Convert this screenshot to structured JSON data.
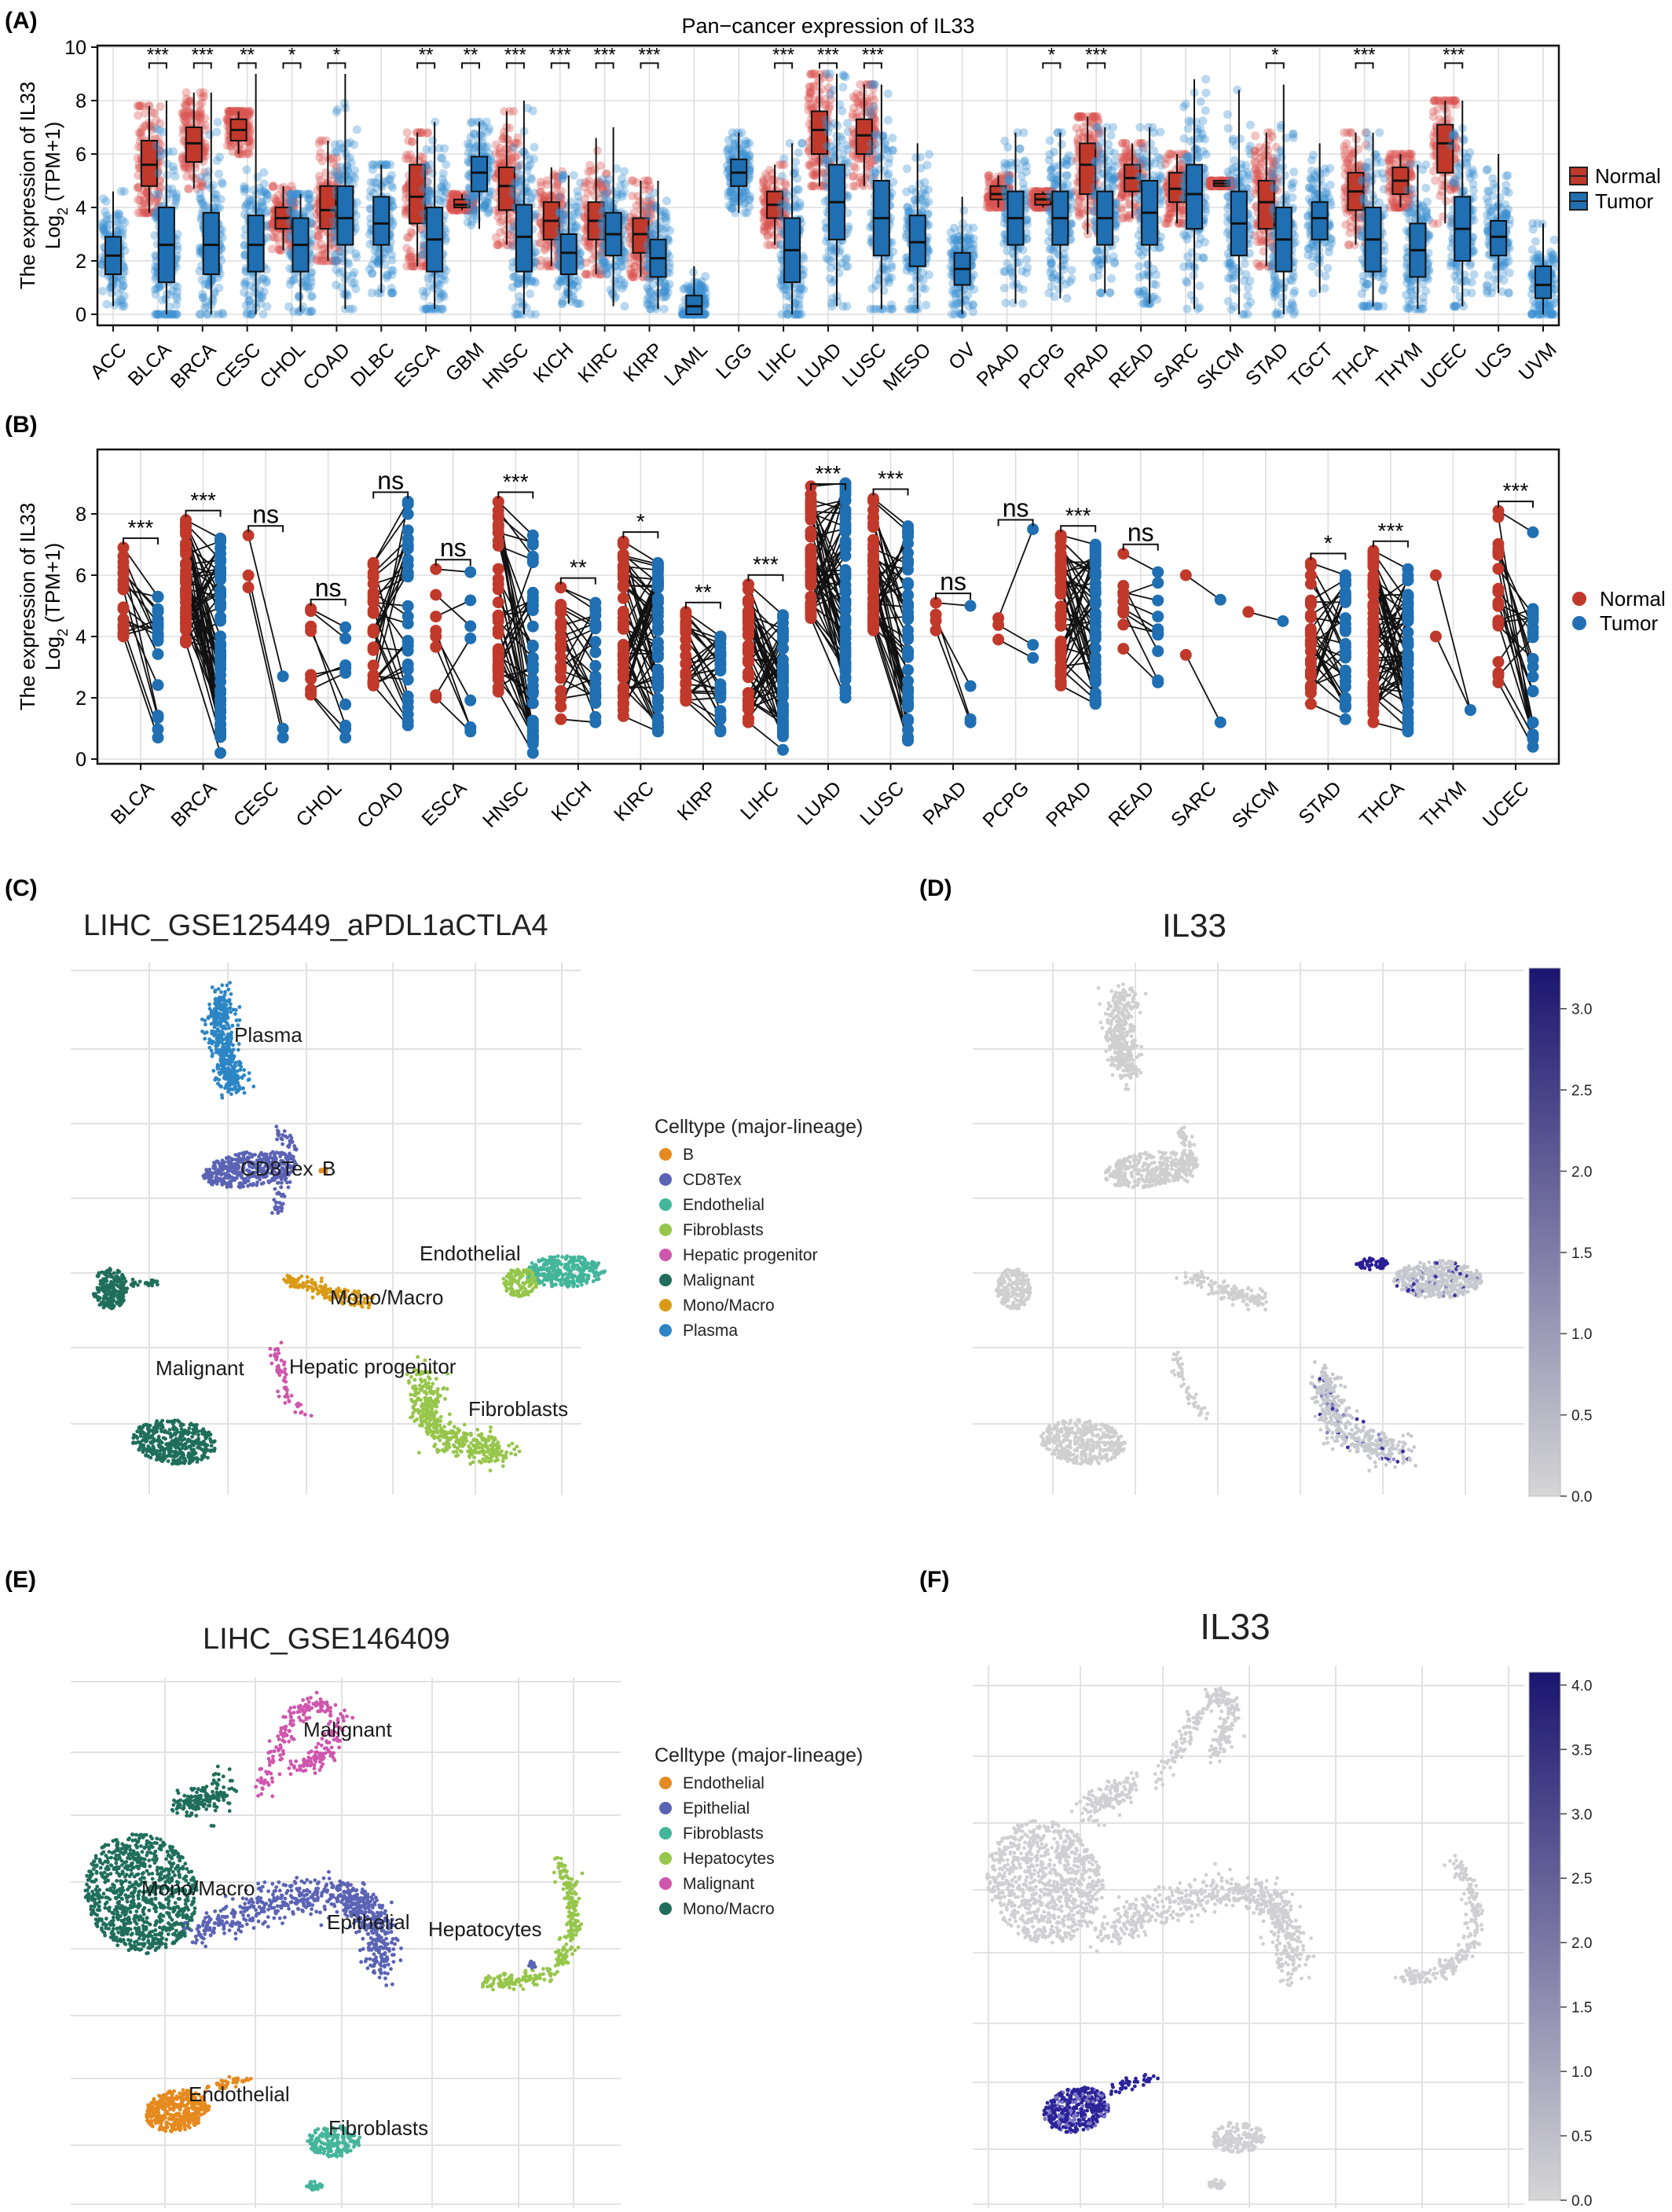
{
  "panel_labels": {
    "A": "(A)",
    "B": "(B)",
    "C": "(C)",
    "D": "(D)",
    "E": "(E)",
    "F": "(F)"
  },
  "colors": {
    "normal": "#c0392b",
    "tumor": "#1f6fb2",
    "grid": "#dedede",
    "sig": "#111111"
  },
  "legend_ab": {
    "normal": "Normal",
    "tumor": "Tumor"
  },
  "chart_data": [
    {
      "id": "A",
      "type": "box",
      "title": "Pan−cancer expression of IL33",
      "ylabel_line1": "The expression of IL33",
      "ylabel_line2": "Log",
      "ylabel_sub": "2",
      "ylabel_tail": " (TPM+1)",
      "ylim": [
        0,
        10
      ],
      "yticks": [
        0,
        2,
        4,
        6,
        8,
        10
      ],
      "series": [
        {
          "name": "Normal"
        },
        {
          "name": "Tumor"
        }
      ],
      "categories": [
        {
          "name": "ACC",
          "tumor": [
            1.5,
            2.2,
            2.9,
            0.3,
            4.6
          ]
        },
        {
          "name": "BLCA",
          "normal": [
            4.8,
            5.6,
            6.5,
            3.8,
            7.8
          ],
          "tumor": [
            1.2,
            2.6,
            4.0,
            0,
            8.0
          ],
          "sig": "***"
        },
        {
          "name": "BRCA",
          "normal": [
            5.7,
            6.4,
            7.0,
            4.7,
            8.3
          ],
          "tumor": [
            1.5,
            2.6,
            3.8,
            0,
            8.3
          ],
          "sig": "***"
        },
        {
          "name": "CESC",
          "normal": [
            6.5,
            6.9,
            7.3,
            6.0,
            7.6
          ],
          "tumor": [
            1.6,
            2.6,
            3.7,
            0,
            9.0
          ],
          "sig": "**"
        },
        {
          "name": "CHOL",
          "normal": [
            3.2,
            3.6,
            4.0,
            2.4,
            4.8
          ],
          "tumor": [
            1.6,
            2.6,
            3.6,
            0.1,
            4.5
          ],
          "sig": "*"
        },
        {
          "name": "COAD",
          "normal": [
            3.2,
            3.9,
            4.8,
            2.0,
            6.5
          ],
          "tumor": [
            2.6,
            3.6,
            4.8,
            0.2,
            9.0
          ],
          "sig": "*"
        },
        {
          "name": "DLBC",
          "tumor": [
            2.6,
            3.4,
            4.4,
            0.8,
            5.6
          ]
        },
        {
          "name": "ESCA",
          "normal": [
            3.4,
            4.4,
            5.6,
            1.8,
            6.8
          ],
          "tumor": [
            1.6,
            2.8,
            4.0,
            0.2,
            7.2
          ],
          "sig": "**"
        },
        {
          "name": "GBM",
          "normal": [
            4.0,
            4.1,
            4.3,
            3.9,
            4.5
          ],
          "tumor": [
            4.6,
            5.3,
            5.9,
            3.2,
            7.2
          ],
          "sig": "**"
        },
        {
          "name": "HNSC",
          "normal": [
            3.9,
            4.8,
            5.5,
            2.6,
            7.6
          ],
          "tumor": [
            1.6,
            2.9,
            4.1,
            0,
            8.0
          ],
          "sig": "***"
        },
        {
          "name": "KICH",
          "normal": [
            2.8,
            3.5,
            4.2,
            1.8,
            5.5
          ],
          "tumor": [
            1.5,
            2.3,
            3.0,
            0.4,
            5.2
          ],
          "sig": "***"
        },
        {
          "name": "KIRC",
          "normal": [
            2.8,
            3.5,
            4.2,
            1.5,
            6.6
          ],
          "tumor": [
            2.2,
            3.0,
            3.8,
            0.3,
            7.0
          ],
          "sig": "***"
        },
        {
          "name": "KIRP",
          "normal": [
            2.3,
            3.0,
            3.6,
            1.4,
            5.0
          ],
          "tumor": [
            1.4,
            2.1,
            2.8,
            0.2,
            5.0
          ],
          "sig": "***"
        },
        {
          "name": "LAML",
          "tumor": [
            0,
            0.3,
            0.7,
            0,
            1.8
          ]
        },
        {
          "name": "LGG",
          "tumor": [
            4.8,
            5.3,
            5.8,
            3.8,
            6.8
          ]
        },
        {
          "name": "LIHC",
          "normal": [
            3.6,
            4.1,
            4.6,
            2.6,
            5.6
          ],
          "tumor": [
            1.2,
            2.4,
            3.6,
            0,
            6.4
          ],
          "sig": "***"
        },
        {
          "name": "LUAD",
          "normal": [
            6.0,
            6.9,
            7.6,
            4.8,
            9.0
          ],
          "tumor": [
            2.8,
            4.2,
            5.6,
            0.3,
            9.0
          ],
          "sig": "***"
        },
        {
          "name": "LUSC",
          "normal": [
            6.0,
            6.7,
            7.3,
            4.8,
            8.6
          ],
          "tumor": [
            2.2,
            3.6,
            5.0,
            0.2,
            8.6
          ],
          "sig": "***"
        },
        {
          "name": "MESO",
          "tumor": [
            1.8,
            2.7,
            3.7,
            0.2,
            6.4
          ]
        },
        {
          "name": "OV",
          "tumor": [
            1.1,
            1.7,
            2.3,
            0,
            4.4
          ]
        },
        {
          "name": "PAAD",
          "normal": [
            4.3,
            4.5,
            4.8,
            4.0,
            5.2
          ],
          "tumor": [
            2.6,
            3.6,
            4.6,
            0.4,
            6.8
          ]
        },
        {
          "name": "PCPG",
          "normal": [
            4.1,
            4.3,
            4.5,
            4.0,
            4.6
          ],
          "tumor": [
            2.6,
            3.6,
            4.6,
            0.6,
            6.8
          ],
          "sig": "*"
        },
        {
          "name": "PRAD",
          "normal": [
            4.5,
            5.6,
            6.4,
            3.0,
            7.4
          ],
          "tumor": [
            2.6,
            3.6,
            4.6,
            0.8,
            7.0
          ],
          "sig": "***"
        },
        {
          "name": "READ",
          "normal": [
            4.6,
            5.1,
            5.6,
            3.6,
            6.4
          ],
          "tumor": [
            2.6,
            3.8,
            5.0,
            0.4,
            7.0
          ]
        },
        {
          "name": "SARC",
          "normal": [
            4.2,
            4.7,
            5.3,
            3.4,
            6.0
          ],
          "tumor": [
            3.2,
            4.5,
            5.6,
            0.2,
            8.8
          ]
        },
        {
          "name": "SKCM",
          "normal": [
            4.8,
            4.9,
            5.0,
            4.8,
            5.0
          ],
          "tumor": [
            2.2,
            3.4,
            4.6,
            0,
            8.4
          ]
        },
        {
          "name": "STAD",
          "normal": [
            3.2,
            4.2,
            5.0,
            1.8,
            6.8
          ],
          "tumor": [
            1.6,
            2.8,
            4.0,
            0,
            8.6
          ],
          "sig": "*"
        },
        {
          "name": "TGCT",
          "tumor": [
            2.8,
            3.6,
            4.2,
            0.8,
            6.4
          ]
        },
        {
          "name": "THCA",
          "normal": [
            3.9,
            4.6,
            5.3,
            2.6,
            6.8
          ],
          "tumor": [
            1.6,
            2.8,
            4.0,
            0.3,
            6.8
          ],
          "sig": "***"
        },
        {
          "name": "THYM",
          "normal": [
            4.5,
            5.0,
            5.5,
            4.0,
            6.0
          ],
          "tumor": [
            1.4,
            2.4,
            3.4,
            0.2,
            5.6
          ]
        },
        {
          "name": "UCEC",
          "normal": [
            5.3,
            6.4,
            7.1,
            3.4,
            8.0
          ],
          "tumor": [
            2.0,
            3.2,
            4.4,
            0.3,
            8.0
          ],
          "sig": "***"
        },
        {
          "name": "UCS",
          "tumor": [
            2.2,
            2.9,
            3.5,
            0.8,
            6.0
          ]
        },
        {
          "name": "UVM",
          "tumor": [
            0.6,
            1.1,
            1.8,
            0,
            3.4
          ]
        }
      ]
    },
    {
      "id": "B",
      "type": "paired",
      "ylabel_line1": "The expression of IL33",
      "ylabel_line2": "Log",
      "ylabel_sub": "2",
      "ylabel_tail": " (TPM+1)",
      "ylim": [
        0,
        9.2
      ],
      "yticks": [
        0,
        2,
        4,
        6,
        8
      ],
      "series": [
        {
          "name": "Normal"
        },
        {
          "name": "Tumor"
        }
      ],
      "categories": [
        {
          "name": "BLCA",
          "sig": "***",
          "n": 18,
          "nr": [
            4.0,
            6.9
          ],
          "tr": [
            0.7,
            5.3
          ]
        },
        {
          "name": "BRCA",
          "sig": "***",
          "n": 60,
          "nr": [
            3.8,
            7.8
          ],
          "tr": [
            0.2,
            7.2
          ]
        },
        {
          "name": "CESC",
          "sig": "ns",
          "n": 3,
          "nr": [
            5.6,
            7.3
          ],
          "tr": [
            0.7,
            2.7
          ]
        },
        {
          "name": "CHOL",
          "sig": "ns",
          "n": 9,
          "nr": [
            2.1,
            4.9
          ],
          "tr": [
            0.7,
            4.3
          ]
        },
        {
          "name": "COAD",
          "sig": "ns",
          "n": 30,
          "nr": [
            2.4,
            6.4
          ],
          "tr": [
            1.1,
            8.4
          ]
        },
        {
          "name": "ESCA",
          "sig": "ns",
          "n": 8,
          "nr": [
            2.0,
            6.2
          ],
          "tr": [
            0.9,
            6.1
          ]
        },
        {
          "name": "HNSC",
          "sig": "***",
          "n": 40,
          "nr": [
            2.2,
            8.4
          ],
          "tr": [
            0.2,
            7.3
          ]
        },
        {
          "name": "KICH",
          "sig": "**",
          "n": 24,
          "nr": [
            1.3,
            5.6
          ],
          "tr": [
            1.2,
            5.1
          ]
        },
        {
          "name": "KIRC",
          "sig": "*",
          "n": 55,
          "nr": [
            1.4,
            7.1
          ],
          "tr": [
            0.9,
            6.4
          ]
        },
        {
          "name": "KIRP",
          "sig": "**",
          "n": 30,
          "nr": [
            1.9,
            4.8
          ],
          "tr": [
            0.9,
            4.0
          ]
        },
        {
          "name": "LIHC",
          "sig": "***",
          "n": 45,
          "nr": [
            1.2,
            5.7
          ],
          "tr": [
            0.3,
            4.7
          ]
        },
        {
          "name": "LUAD",
          "sig": "***",
          "n": 55,
          "nr": [
            4.6,
            8.9
          ],
          "tr": [
            2.0,
            9.0
          ]
        },
        {
          "name": "LUSC",
          "sig": "***",
          "n": 48,
          "nr": [
            4.2,
            8.5
          ],
          "tr": [
            0.6,
            7.6
          ]
        },
        {
          "name": "PAAD",
          "sig": "ns",
          "n": 4,
          "nr": [
            4.2,
            5.1
          ],
          "tr": [
            1.2,
            5.0
          ]
        },
        {
          "name": "PCPG",
          "sig": "ns",
          "n": 3,
          "nr": [
            3.9,
            4.6
          ],
          "tr": [
            3.3,
            7.5
          ]
        },
        {
          "name": "PRAD",
          "sig": "***",
          "n": 50,
          "nr": [
            2.4,
            7.3
          ],
          "tr": [
            1.8,
            7.0
          ]
        },
        {
          "name": "READ",
          "sig": "ns",
          "n": 10,
          "nr": [
            3.6,
            6.7
          ],
          "tr": [
            2.5,
            6.1
          ]
        },
        {
          "name": "SARC",
          "sig": "",
          "n": 2,
          "nr": [
            3.4,
            6.0
          ],
          "tr": [
            1.2,
            5.2
          ]
        },
        {
          "name": "SKCM",
          "sig": "",
          "n": 1,
          "nr": [
            4.8,
            4.8
          ],
          "tr": [
            4.5,
            4.5
          ]
        },
        {
          "name": "STAD",
          "sig": "*",
          "n": 32,
          "nr": [
            1.8,
            6.4
          ],
          "tr": [
            1.3,
            6.0
          ]
        },
        {
          "name": "THCA",
          "sig": "***",
          "n": 58,
          "nr": [
            1.2,
            6.8
          ],
          "tr": [
            0.9,
            6.2
          ]
        },
        {
          "name": "THYM",
          "sig": "",
          "n": 2,
          "nr": [
            4.0,
            6.0
          ],
          "tr": [
            1.6,
            1.6
          ]
        },
        {
          "name": "UCEC",
          "sig": "***",
          "n": 23,
          "nr": [
            2.5,
            8.1
          ],
          "tr": [
            0.4,
            7.4
          ]
        }
      ]
    },
    {
      "id": "C",
      "type": "scatter",
      "title": "LIHC_GSE125449_aPDL1aCTLA4",
      "legend_title": "Celltype (major-lineage)",
      "legend": [
        {
          "name": "B",
          "color": "#e58a1f"
        },
        {
          "name": "CD8Tex",
          "color": "#5b63b4"
        },
        {
          "name": "Endothelial",
          "color": "#43b59a"
        },
        {
          "name": "Fibroblasts",
          "color": "#96c64a"
        },
        {
          "name": "Hepatic progenitor",
          "color": "#cf56ad"
        },
        {
          "name": "Malignant",
          "color": "#1f6e5b"
        },
        {
          "name": "Mono/Macro",
          "color": "#d99b17"
        },
        {
          "name": "Plasma",
          "color": "#2c86c5"
        }
      ],
      "cluster_labels": [
        "Plasma",
        "CD8Tex",
        "B",
        "Endothelial",
        "Mono/Macro",
        "Malignant",
        "Hepatic progenitor",
        "Fibroblasts"
      ]
    },
    {
      "id": "D",
      "type": "scatter",
      "title": "IL33",
      "colorbar_ticks": [
        "3.0",
        "2.5",
        "2.0",
        "1.5",
        "1.0",
        "0.5",
        "0.0"
      ],
      "colorbar_max": 3.25
    },
    {
      "id": "E",
      "type": "scatter",
      "title": "LIHC_GSE146409",
      "legend_title": "Celltype (major-lineage)",
      "legend": [
        {
          "name": "Endothelial",
          "color": "#e58a1f"
        },
        {
          "name": "Epithelial",
          "color": "#5b63b4"
        },
        {
          "name": "Fibroblasts",
          "color": "#43b59a"
        },
        {
          "name": "Hepatocytes",
          "color": "#96c64a"
        },
        {
          "name": "Malignant",
          "color": "#cf56ad"
        },
        {
          "name": "Mono/Macro",
          "color": "#1f6e5b"
        }
      ],
      "cluster_labels": [
        "Malignant",
        "Mono/Macro",
        "Epithelial",
        "Hepatocytes",
        "Endothelial",
        "Fibroblasts"
      ]
    },
    {
      "id": "F",
      "type": "scatter",
      "title": "IL33",
      "colorbar_ticks": [
        "4.0",
        "3.5",
        "3.0",
        "2.5",
        "2.0",
        "1.5",
        "1.0",
        "0.5",
        "0.0"
      ],
      "colorbar_max": 4.1
    }
  ]
}
